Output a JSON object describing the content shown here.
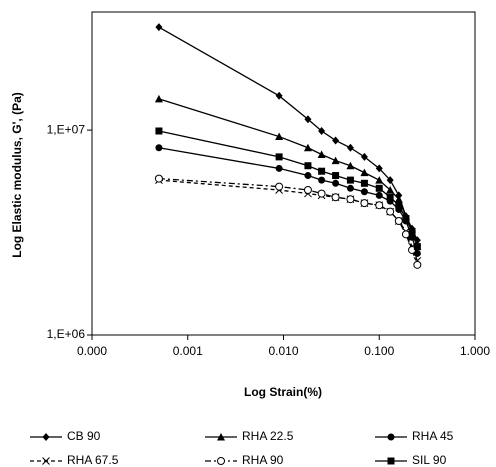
{
  "chart_data": {
    "type": "line",
    "x_label": "Log Strain(%)",
    "y_label": "Log Elastic modulus, G', (Pa)",
    "x_log": true,
    "y_log": true,
    "xlim": [
      0.0001,
      1
    ],
    "xticks": [
      {
        "value": 0.0001,
        "label": "0.000"
      },
      {
        "value": 0.001,
        "label": "0.001"
      },
      {
        "value": 0.01,
        "label": "0.010"
      },
      {
        "value": 0.1,
        "label": "0.100"
      },
      {
        "value": 1,
        "label": "1.000"
      }
    ],
    "ylim": [
      1000000,
      37700000
    ],
    "yticks": [
      {
        "value": 1000000,
        "label": "1,E+06"
      },
      {
        "value": 10000000,
        "label": "1,E+07"
      }
    ],
    "legend_position": "bottom",
    "x": [
      0.0005,
      0.009,
      0.018,
      0.025,
      0.035,
      0.05,
      0.07,
      0.1,
      0.13,
      0.16,
      0.19,
      0.22,
      0.25
    ],
    "series": [
      {
        "name": "CB 90",
        "color": "#000000",
        "marker": "diamond",
        "dash": "solid",
        "values": [
          31800000,
          14700000,
          11300000,
          9900000,
          8900000,
          8200000,
          7400000,
          6500000,
          5700000,
          4800000,
          3800000,
          3300000,
          2900000
        ]
      },
      {
        "name": "RHA 22.5",
        "color": "#000000",
        "marker": "triangle",
        "dash": "solid",
        "values": [
          14200000,
          9300000,
          8200000,
          7600000,
          7100000,
          6700000,
          6200000,
          5700000,
          5100000,
          4600000,
          3800000,
          3300000,
          2700000
        ]
      },
      {
        "name": "RHA 45",
        "color": "#000000",
        "marker": "circle",
        "dash": "solid",
        "values": [
          8200000,
          6500000,
          6000000,
          5700000,
          5500000,
          5200000,
          5000000,
          4800000,
          4500000,
          4100000,
          3600000,
          3000000,
          2500000
        ]
      },
      {
        "name": "RHA 67.5",
        "color": "#000000",
        "marker": "cross",
        "dash": "dashed",
        "values": [
          5700000,
          5100000,
          4900000,
          4800000,
          4700000,
          4600000,
          4400000,
          4300000,
          4000000,
          3600000,
          3200000,
          2700000,
          2300000
        ]
      },
      {
        "name": "RHA 90",
        "color": "#000000",
        "marker": "open-circle",
        "dash": "dashdot",
        "values": [
          5800000,
          5300000,
          5100000,
          4900000,
          4700000,
          4600000,
          4400000,
          4300000,
          4000000,
          3600000,
          3100000,
          2600000,
          2200000
        ]
      },
      {
        "name": "SIL 90",
        "color": "#000000",
        "marker": "square",
        "dash": "solid",
        "values": [
          9900000,
          7400000,
          6700000,
          6300000,
          6000000,
          5700000,
          5500000,
          5200000,
          4700000,
          4300000,
          3700000,
          3200000,
          2700000
        ]
      }
    ]
  }
}
